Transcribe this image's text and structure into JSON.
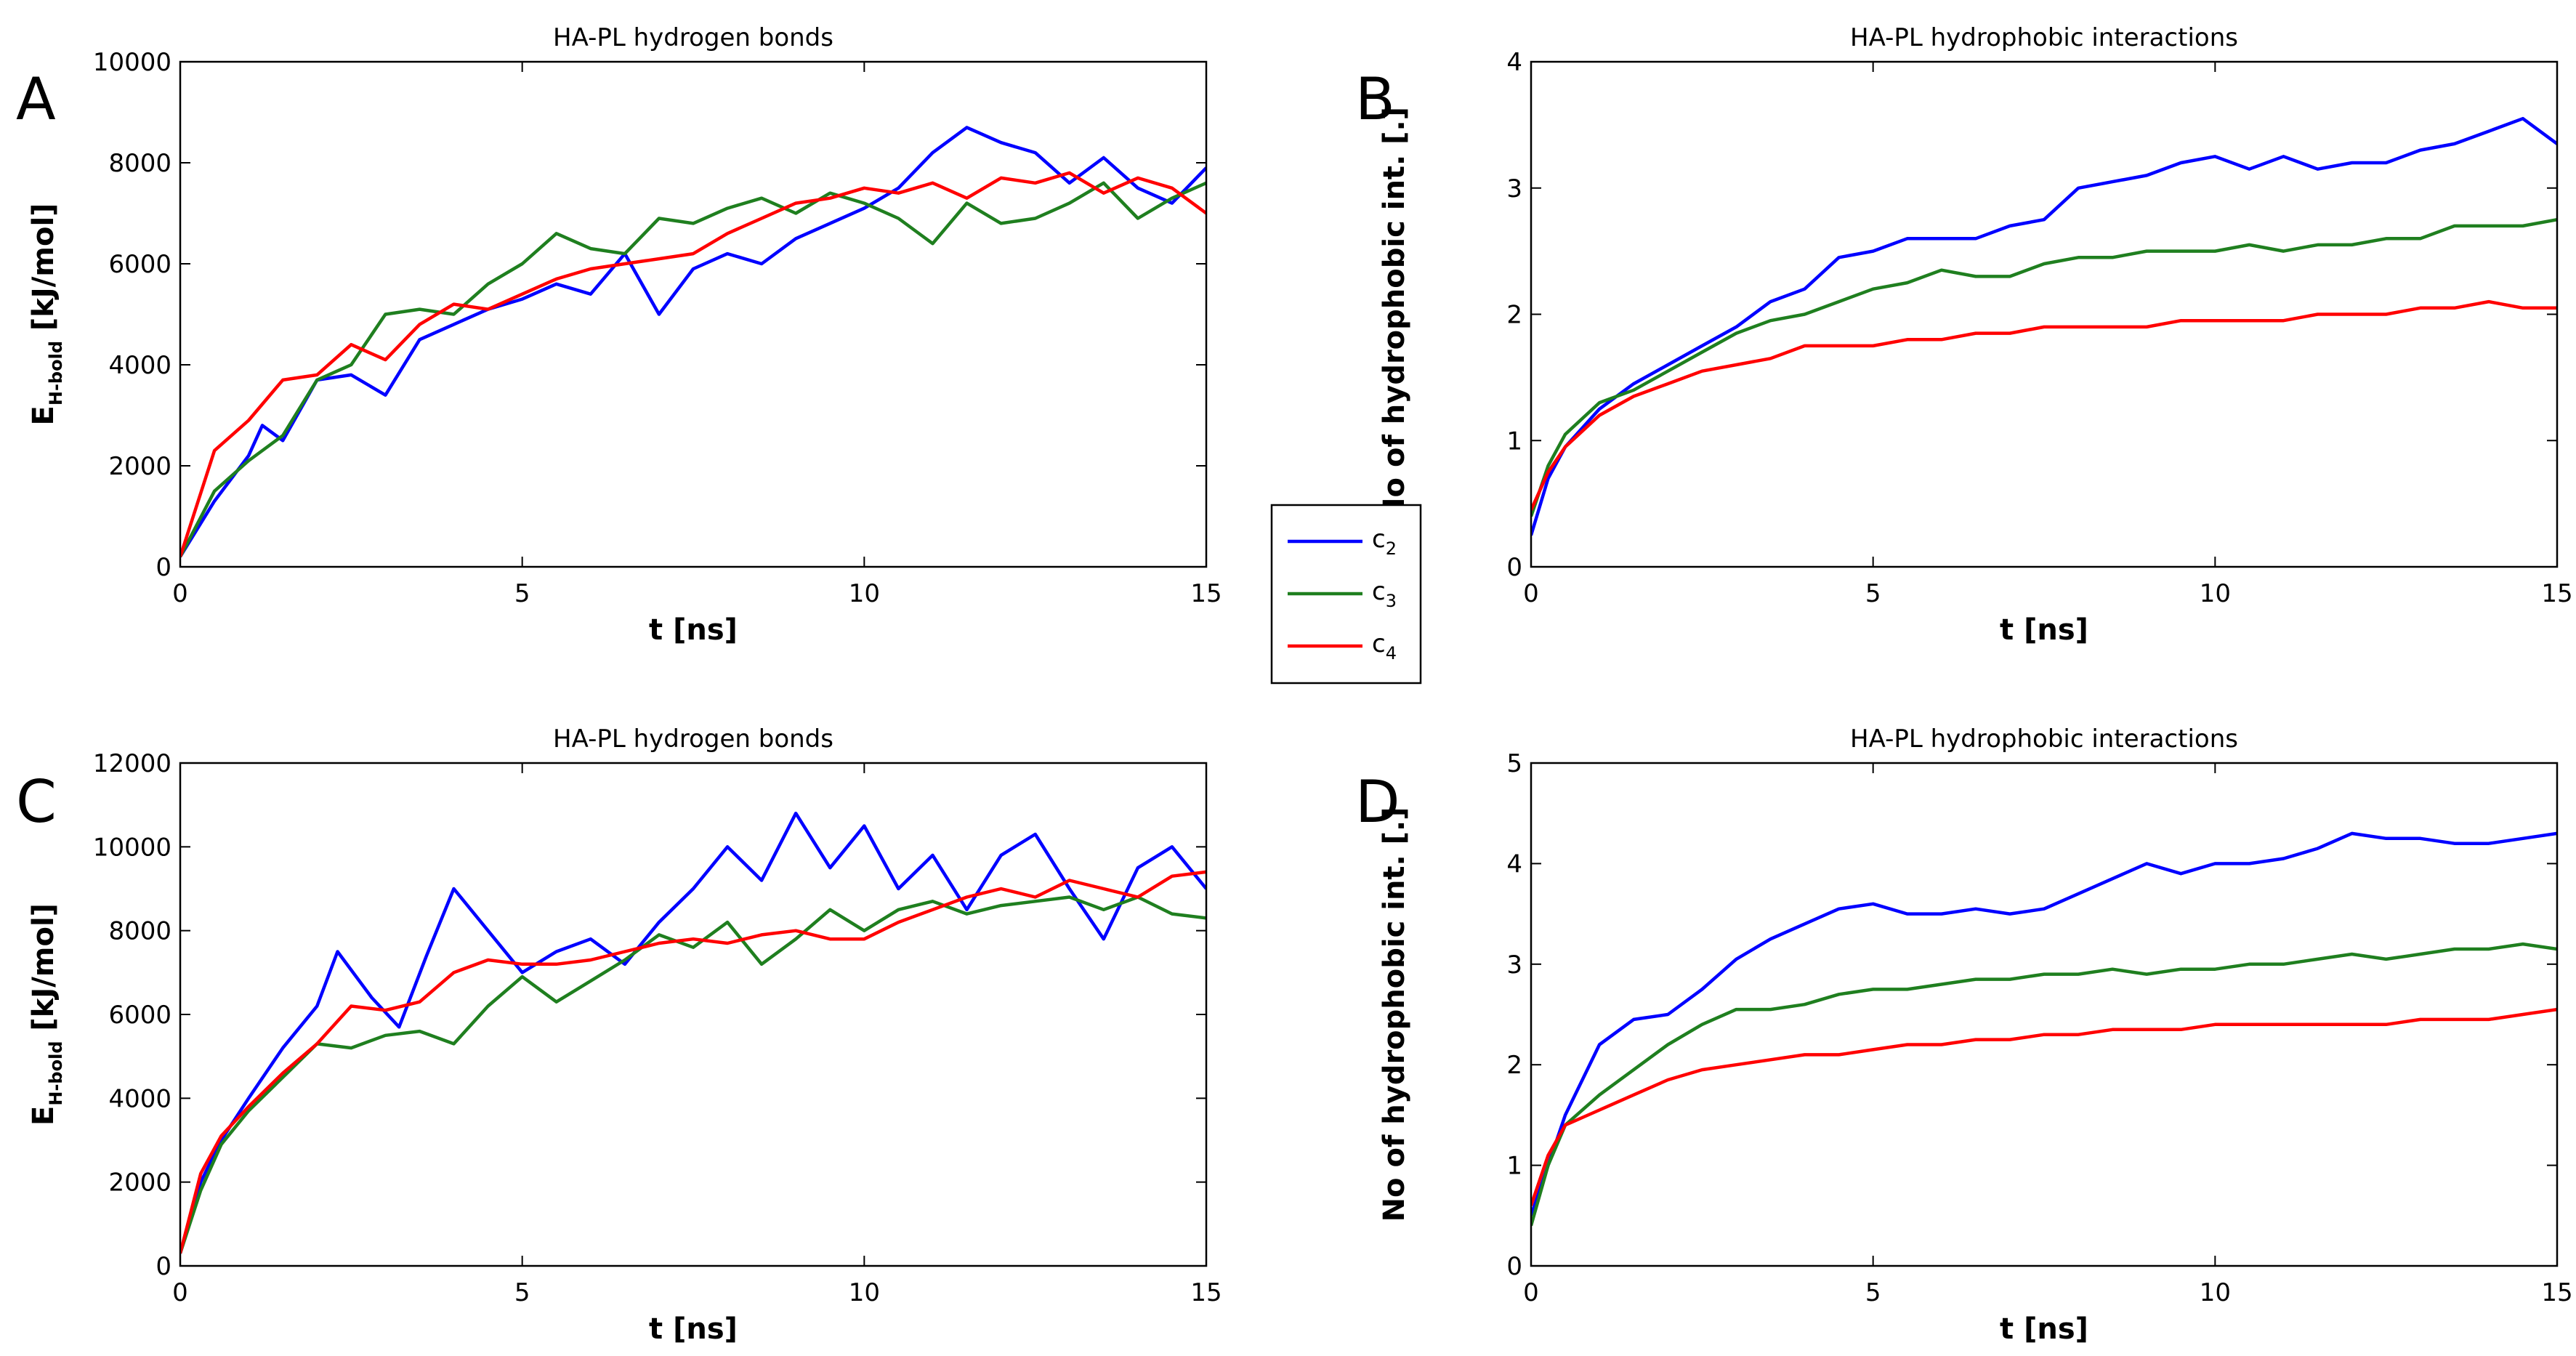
{
  "legend": {
    "entries": [
      {
        "label": "c",
        "sub": "2",
        "color": "#0000ff"
      },
      {
        "label": "c",
        "sub": "3",
        "color": "#1f7f1f"
      },
      {
        "label": "c",
        "sub": "4",
        "color": "#ff0000"
      }
    ]
  },
  "chart_data": [
    {
      "id": "A",
      "panel": "A",
      "type": "line",
      "title": "HA-PL hydrogen bonds",
      "xlabel": "t [ns]",
      "ylabel_main": "E",
      "ylabel_sub": "H-bold",
      "ylabel_unit": " [kJ/mol]",
      "xlim": [
        0,
        15
      ],
      "ylim": [
        0,
        10000
      ],
      "xticks": [
        0,
        5,
        10,
        15
      ],
      "yticks": [
        0,
        2000,
        4000,
        6000,
        8000,
        10000
      ],
      "xtick_labels": [
        "0",
        "5",
        "10",
        "15"
      ],
      "ytick_labels": [
        "0",
        "2000",
        "4000",
        "6000",
        "8000",
        "10000"
      ],
      "series": [
        {
          "name": "c2",
          "color": "#0000ff",
          "x": [
            0,
            0.5,
            1,
            1.2,
            1.5,
            2,
            2.5,
            3,
            3.5,
            4,
            4.5,
            5,
            5.5,
            6,
            6.5,
            7,
            7.5,
            8,
            8.5,
            9,
            9.5,
            10,
            10.5,
            11,
            11.5,
            12,
            12.5,
            13,
            13.5,
            14,
            14.5,
            15
          ],
          "y": [
            200,
            1300,
            2200,
            2800,
            2500,
            3700,
            3800,
            3400,
            4500,
            4800,
            5100,
            5300,
            5600,
            5400,
            6200,
            5000,
            5900,
            6200,
            6000,
            6500,
            6800,
            7100,
            7500,
            8200,
            8700,
            8400,
            8200,
            7600,
            8100,
            7500,
            7200,
            7900
          ]
        },
        {
          "name": "c3",
          "color": "#1f7f1f",
          "x": [
            0,
            0.5,
            1,
            1.5,
            2,
            2.5,
            3,
            3.5,
            4,
            4.5,
            5,
            5.5,
            6,
            6.5,
            7,
            7.5,
            8,
            8.5,
            9,
            9.5,
            10,
            10.5,
            11,
            11.5,
            12,
            12.5,
            13,
            13.5,
            14,
            14.5,
            15
          ],
          "y": [
            200,
            1500,
            2100,
            2600,
            3700,
            4000,
            5000,
            5100,
            5000,
            5600,
            6000,
            6600,
            6300,
            6200,
            6900,
            6800,
            7100,
            7300,
            7000,
            7400,
            7200,
            6900,
            6400,
            7200,
            6800,
            6900,
            7200,
            7600,
            6900,
            7300,
            7600
          ]
        },
        {
          "name": "c4",
          "color": "#ff0000",
          "x": [
            0,
            0.5,
            1,
            1.5,
            2,
            2.5,
            3,
            3.5,
            4,
            4.5,
            5,
            5.5,
            6,
            6.5,
            7,
            7.5,
            8,
            8.5,
            9,
            9.5,
            10,
            10.5,
            11,
            11.5,
            12,
            12.5,
            13,
            13.5,
            14,
            14.5,
            15
          ],
          "y": [
            200,
            2300,
            2900,
            3700,
            3800,
            4400,
            4100,
            4800,
            5200,
            5100,
            5400,
            5700,
            5900,
            6000,
            6100,
            6200,
            6600,
            6900,
            7200,
            7300,
            7500,
            7400,
            7600,
            7300,
            7700,
            7600,
            7800,
            7400,
            7700,
            7500,
            7000
          ]
        }
      ]
    },
    {
      "id": "B",
      "panel": "B",
      "type": "line",
      "title": "HA-PL hydrophobic interactions",
      "xlabel": "t [ns]",
      "ylabel_main": "No of hydrophobic int. [.]",
      "ylabel_sub": "",
      "ylabel_unit": "",
      "xlim": [
        0,
        15
      ],
      "ylim": [
        0,
        4
      ],
      "xticks": [
        0,
        5,
        10,
        15
      ],
      "yticks": [
        0,
        1,
        2,
        3,
        4
      ],
      "xtick_labels": [
        "0",
        "5",
        "10",
        "15"
      ],
      "ytick_labels": [
        "0",
        "1",
        "2",
        "3",
        "4"
      ],
      "series": [
        {
          "name": "c2",
          "color": "#0000ff",
          "x": [
            0,
            0.25,
            0.5,
            1,
            1.5,
            2,
            2.5,
            3,
            3.5,
            4,
            4.5,
            5,
            5.5,
            6,
            6.5,
            7,
            7.5,
            8,
            8.5,
            9,
            9.5,
            10,
            10.5,
            11,
            11.5,
            12,
            12.5,
            13,
            13.5,
            14,
            14.5,
            15
          ],
          "y": [
            0.25,
            0.7,
            0.95,
            1.25,
            1.45,
            1.6,
            1.75,
            1.9,
            2.1,
            2.2,
            2.45,
            2.5,
            2.6,
            2.6,
            2.6,
            2.7,
            2.75,
            3.0,
            3.05,
            3.1,
            3.2,
            3.25,
            3.15,
            3.25,
            3.15,
            3.2,
            3.2,
            3.3,
            3.35,
            3.45,
            3.55,
            3.35
          ]
        },
        {
          "name": "c3",
          "color": "#1f7f1f",
          "x": [
            0,
            0.25,
            0.5,
            1,
            1.5,
            2,
            2.5,
            3,
            3.5,
            4,
            4.5,
            5,
            5.5,
            6,
            6.5,
            7,
            7.5,
            8,
            8.5,
            9,
            9.5,
            10,
            10.5,
            11,
            11.5,
            12,
            12.5,
            13,
            13.5,
            14,
            14.5,
            15
          ],
          "y": [
            0.4,
            0.8,
            1.05,
            1.3,
            1.4,
            1.55,
            1.7,
            1.85,
            1.95,
            2.0,
            2.1,
            2.2,
            2.25,
            2.35,
            2.3,
            2.3,
            2.4,
            2.45,
            2.45,
            2.5,
            2.5,
            2.5,
            2.55,
            2.5,
            2.55,
            2.55,
            2.6,
            2.6,
            2.7,
            2.7,
            2.7,
            2.75
          ]
        },
        {
          "name": "c4",
          "color": "#ff0000",
          "x": [
            0,
            0.25,
            0.5,
            1,
            1.5,
            2,
            2.5,
            3,
            3.5,
            4,
            4.5,
            5,
            5.5,
            6,
            6.5,
            7,
            7.5,
            8,
            8.5,
            9,
            9.5,
            10,
            10.5,
            11,
            11.5,
            12,
            12.5,
            13,
            13.5,
            14,
            14.5,
            15
          ],
          "y": [
            0.45,
            0.75,
            0.95,
            1.2,
            1.35,
            1.45,
            1.55,
            1.6,
            1.65,
            1.75,
            1.75,
            1.75,
            1.8,
            1.8,
            1.85,
            1.85,
            1.9,
            1.9,
            1.9,
            1.9,
            1.95,
            1.95,
            1.95,
            1.95,
            2.0,
            2.0,
            2.0,
            2.05,
            2.05,
            2.1,
            2.05,
            2.05
          ]
        }
      ]
    },
    {
      "id": "C",
      "panel": "C",
      "type": "line",
      "title": "HA-PL hydrogen bonds",
      "xlabel": "t [ns]",
      "ylabel_main": "E",
      "ylabel_sub": "H-bold",
      "ylabel_unit": " [kJ/mol]",
      "xlim": [
        0,
        15
      ],
      "ylim": [
        0,
        12000
      ],
      "xticks": [
        0,
        5,
        10,
        15
      ],
      "yticks": [
        0,
        2000,
        4000,
        6000,
        8000,
        10000,
        12000
      ],
      "xtick_labels": [
        "0",
        "5",
        "10",
        "15"
      ],
      "ytick_labels": [
        "0",
        "2000",
        "4000",
        "6000",
        "8000",
        "10000",
        "12000"
      ],
      "series": [
        {
          "name": "c2",
          "color": "#0000ff",
          "x": [
            0,
            0.3,
            0.6,
            1,
            1.5,
            2,
            2.3,
            2.8,
            3.2,
            3.6,
            4,
            4.5,
            5,
            5.5,
            6,
            6.5,
            7,
            7.5,
            8,
            8.5,
            9,
            9.5,
            10,
            10.5,
            11,
            11.5,
            12,
            12.5,
            13,
            13.5,
            14,
            14.5,
            15
          ],
          "y": [
            300,
            2000,
            3000,
            4000,
            5200,
            6200,
            7500,
            6400,
            5700,
            7400,
            9000,
            8000,
            7000,
            7500,
            7800,
            7200,
            8200,
            9000,
            10000,
            9200,
            10800,
            9500,
            10500,
            9000,
            9800,
            8500,
            9800,
            10300,
            9000,
            7800,
            9500,
            10000,
            9000
          ]
        },
        {
          "name": "c3",
          "color": "#1f7f1f",
          "x": [
            0,
            0.3,
            0.6,
            1,
            1.5,
            2,
            2.5,
            3,
            3.5,
            4,
            4.5,
            5,
            5.5,
            6,
            6.5,
            7,
            7.5,
            8,
            8.5,
            9,
            9.5,
            10,
            10.5,
            11,
            11.5,
            12,
            12.5,
            13,
            13.5,
            14,
            14.5,
            15
          ],
          "y": [
            300,
            1800,
            2900,
            3700,
            4500,
            5300,
            5200,
            5500,
            5600,
            5300,
            6200,
            6900,
            6300,
            6800,
            7300,
            7900,
            7600,
            8200,
            7200,
            7800,
            8500,
            8000,
            8500,
            8700,
            8400,
            8600,
            8700,
            8800,
            8500,
            8800,
            8400,
            8300
          ]
        },
        {
          "name": "c4",
          "color": "#ff0000",
          "x": [
            0,
            0.3,
            0.6,
            1,
            1.5,
            2,
            2.5,
            3,
            3.5,
            4,
            4.5,
            5,
            5.5,
            6,
            6.5,
            7,
            7.5,
            8,
            8.5,
            9,
            9.5,
            10,
            10.5,
            11,
            11.5,
            12,
            12.5,
            13,
            13.5,
            14,
            14.5,
            15
          ],
          "y": [
            300,
            2200,
            3100,
            3800,
            4600,
            5300,
            6200,
            6100,
            6300,
            7000,
            7300,
            7200,
            7200,
            7300,
            7500,
            7700,
            7800,
            7700,
            7900,
            8000,
            7800,
            7800,
            8200,
            8500,
            8800,
            9000,
            8800,
            9200,
            9000,
            8800,
            9300,
            9400
          ]
        }
      ]
    },
    {
      "id": "D",
      "panel": "D",
      "type": "line",
      "title": "HA-PL hydrophobic interactions",
      "xlabel": "t [ns]",
      "ylabel_main": "No of hydrophobic int. [.]",
      "ylabel_sub": "",
      "ylabel_unit": "",
      "xlim": [
        0,
        15
      ],
      "ylim": [
        0,
        5
      ],
      "xticks": [
        0,
        5,
        10,
        15
      ],
      "yticks": [
        0,
        1,
        2,
        3,
        4,
        5
      ],
      "xtick_labels": [
        "0",
        "5",
        "10",
        "15"
      ],
      "ytick_labels": [
        "0",
        "1",
        "2",
        "3",
        "4",
        "5"
      ],
      "series": [
        {
          "name": "c2",
          "color": "#0000ff",
          "x": [
            0,
            0.25,
            0.5,
            1,
            1.5,
            2,
            2.5,
            3,
            3.5,
            4,
            4.5,
            5,
            5.5,
            6,
            6.5,
            7,
            7.5,
            8,
            8.5,
            9,
            9.5,
            10,
            10.5,
            11,
            11.5,
            12,
            12.5,
            13,
            13.5,
            14,
            14.5,
            15
          ],
          "y": [
            0.5,
            1.0,
            1.5,
            2.2,
            2.45,
            2.5,
            2.75,
            3.05,
            3.25,
            3.4,
            3.55,
            3.6,
            3.5,
            3.5,
            3.55,
            3.5,
            3.55,
            3.7,
            3.85,
            4.0,
            3.9,
            4.0,
            4.0,
            4.05,
            4.15,
            4.3,
            4.25,
            4.25,
            4.2,
            4.2,
            4.25,
            4.3
          ]
        },
        {
          "name": "c3",
          "color": "#1f7f1f",
          "x": [
            0,
            0.25,
            0.5,
            1,
            1.5,
            2,
            2.5,
            3,
            3.5,
            4,
            4.5,
            5,
            5.5,
            6,
            6.5,
            7,
            7.5,
            8,
            8.5,
            9,
            9.5,
            10,
            10.5,
            11,
            11.5,
            12,
            12.5,
            13,
            13.5,
            14,
            14.5,
            15
          ],
          "y": [
            0.4,
            1.0,
            1.4,
            1.7,
            1.95,
            2.2,
            2.4,
            2.55,
            2.55,
            2.6,
            2.7,
            2.75,
            2.75,
            2.8,
            2.85,
            2.85,
            2.9,
            2.9,
            2.95,
            2.9,
            2.95,
            2.95,
            3.0,
            3.0,
            3.05,
            3.1,
            3.05,
            3.1,
            3.15,
            3.15,
            3.2,
            3.15
          ]
        },
        {
          "name": "c4",
          "color": "#ff0000",
          "x": [
            0,
            0.25,
            0.5,
            1,
            1.5,
            2,
            2.5,
            3,
            3.5,
            4,
            4.5,
            5,
            5.5,
            6,
            6.5,
            7,
            7.5,
            8,
            8.5,
            9,
            9.5,
            10,
            10.5,
            11,
            11.5,
            12,
            12.5,
            13,
            13.5,
            14,
            14.5,
            15
          ],
          "y": [
            0.6,
            1.1,
            1.4,
            1.55,
            1.7,
            1.85,
            1.95,
            2.0,
            2.05,
            2.1,
            2.1,
            2.15,
            2.2,
            2.2,
            2.25,
            2.25,
            2.3,
            2.3,
            2.35,
            2.35,
            2.35,
            2.4,
            2.4,
            2.4,
            2.4,
            2.4,
            2.4,
            2.45,
            2.45,
            2.45,
            2.5,
            2.55
          ]
        }
      ]
    }
  ]
}
